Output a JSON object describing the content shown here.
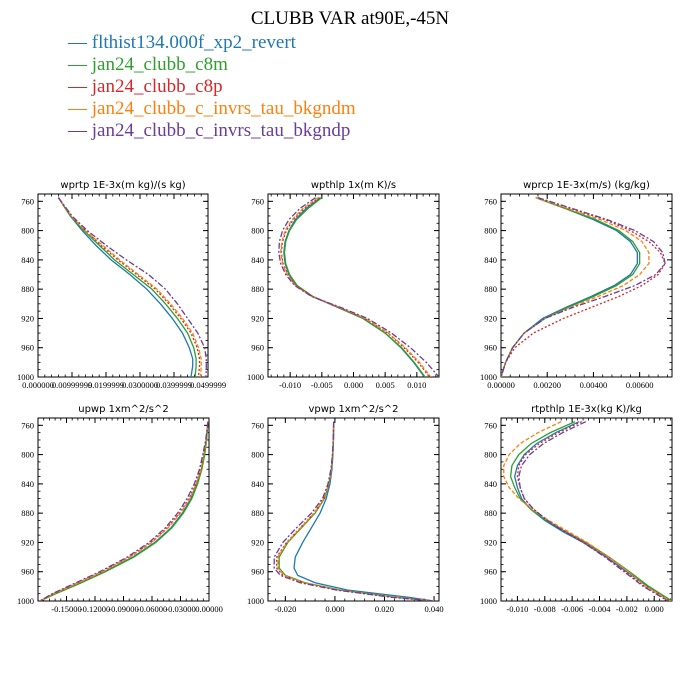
{
  "figure_title": "CLUBB VAR at90E,-45N",
  "legend": [
    {
      "label": "— flthist134.000f_xp2_revert",
      "color": "#1f77b4"
    },
    {
      "label": "— jan24_clubb_c8m",
      "color": "#2ca02c"
    },
    {
      "label": "— jan24_clubb_c8p",
      "color": "#d62728"
    },
    {
      "label": "— jan24_clubb_c_invrs_tau_bkgndm",
      "color": "#ff7f0e"
    },
    {
      "label": "— jan24_clubb_c_invrs_tau_bkgndp",
      "color": "#6a3d9a"
    }
  ],
  "chart_data": [
    {
      "type": "line",
      "title": "wprtp  1E-3x(m kg)/(s kg)",
      "xlim": [
        0.0,
        0.05
      ],
      "ylim": [
        1000,
        750
      ],
      "y_inverted": true,
      "xticks": [
        0.0,
        0.01,
        0.02,
        0.03,
        0.04,
        0.05
      ],
      "xtick_labels": [
        "0.000000",
        "0.00999999",
        "0.0199999",
        "0.0300000",
        "0.0399999",
        "0.0499999"
      ],
      "yticks": [
        760,
        800,
        840,
        880,
        920,
        960,
        1000
      ],
      "ytick_labels": [
        "760",
        "800",
        "840",
        "880",
        "920",
        "960",
        "1000"
      ],
      "y": [
        755,
        780,
        800,
        820,
        840,
        860,
        880,
        900,
        920,
        940,
        960,
        975,
        985,
        1000
      ],
      "series": [
        {
          "values": [
            0.006,
            0.0095,
            0.013,
            0.017,
            0.0215,
            0.027,
            0.032,
            0.036,
            0.0395,
            0.0425,
            0.0445,
            0.0455,
            0.0455,
            0.045
          ]
        },
        {
          "values": [
            0.006,
            0.0095,
            0.0135,
            0.018,
            0.0225,
            0.028,
            0.0335,
            0.0375,
            0.041,
            0.044,
            0.0458,
            0.0465,
            0.0465,
            0.0462
          ]
        },
        {
          "values": [
            0.006,
            0.0098,
            0.014,
            0.0185,
            0.0235,
            0.029,
            0.0345,
            0.0385,
            0.042,
            0.045,
            0.0468,
            0.0475,
            0.0475,
            0.0472
          ]
        },
        {
          "values": [
            0.006,
            0.0098,
            0.0138,
            0.019,
            0.024,
            0.0295,
            0.035,
            0.039,
            0.0425,
            0.0455,
            0.0472,
            0.048,
            0.048,
            0.0478
          ]
        },
        {
          "values": [
            0.006,
            0.01,
            0.0145,
            0.02,
            0.026,
            0.0325,
            0.0375,
            0.041,
            0.044,
            0.047,
            0.049,
            0.0495,
            0.0495,
            0.0494
          ]
        }
      ]
    },
    {
      "type": "line",
      "title": "wpthlp  1x(m K)/s",
      "xlim": [
        -0.0135,
        0.0135
      ],
      "ylim": [
        1000,
        750
      ],
      "y_inverted": true,
      "xticks": [
        -0.01,
        -0.005,
        0.0,
        0.005,
        0.01
      ],
      "xtick_labels": [
        "-0.010",
        "-0.005",
        "0.000",
        "0.005",
        "0.010"
      ],
      "yticks": [
        760,
        800,
        840,
        880,
        920,
        960,
        1000
      ],
      "ytick_labels": [
        "760",
        "800",
        "840",
        "880",
        "920",
        "960",
        "1000"
      ],
      "y": [
        755,
        770,
        785,
        800,
        815,
        830,
        845,
        860,
        875,
        890,
        905,
        920,
        940,
        960,
        980,
        1000
      ],
      "series": [
        {
          "values": [
            -0.0052,
            -0.0075,
            -0.0092,
            -0.0102,
            -0.0108,
            -0.011,
            -0.0108,
            -0.0102,
            -0.009,
            -0.0065,
            -0.0025,
            0.0015,
            0.005,
            0.0075,
            0.0095,
            0.0112
          ]
        },
        {
          "values": [
            -0.005,
            -0.0072,
            -0.009,
            -0.0101,
            -0.0107,
            -0.0109,
            -0.0107,
            -0.0101,
            -0.0089,
            -0.0064,
            -0.0024,
            0.0015,
            0.005,
            0.0076,
            0.0096,
            0.0113
          ]
        },
        {
          "values": [
            -0.0054,
            -0.0078,
            -0.0095,
            -0.0106,
            -0.0112,
            -0.0114,
            -0.0111,
            -0.0104,
            -0.0091,
            -0.0065,
            -0.0023,
            0.0018,
            0.0054,
            0.008,
            0.0102,
            0.012
          ]
        },
        {
          "values": [
            -0.0056,
            -0.008,
            -0.0097,
            -0.0108,
            -0.0113,
            -0.0115,
            -0.0112,
            -0.0105,
            -0.0092,
            -0.0066,
            -0.0022,
            0.0019,
            0.0055,
            0.0082,
            0.0104,
            0.0122
          ]
        },
        {
          "values": [
            -0.006,
            -0.0085,
            -0.0102,
            -0.0112,
            -0.0117,
            -0.0118,
            -0.0115,
            -0.0107,
            -0.0093,
            -0.0066,
            -0.002,
            0.0022,
            0.006,
            0.009,
            0.0115,
            0.0135
          ]
        }
      ]
    },
    {
      "type": "line",
      "title": "wprcp  1E-3x(m/s) (kg/kg)",
      "xlim": [
        0.0,
        0.0074
      ],
      "ylim": [
        1000,
        750
      ],
      "y_inverted": true,
      "xticks": [
        0.0,
        0.002,
        0.004,
        0.006
      ],
      "xtick_labels": [
        "0.00000",
        "0.00200",
        "0.00400",
        "0.00600"
      ],
      "yticks": [
        760,
        800,
        840,
        880,
        920,
        960,
        1000
      ],
      "ytick_labels": [
        "760",
        "800",
        "840",
        "880",
        "920",
        "960",
        "1000"
      ],
      "y": [
        755,
        770,
        785,
        800,
        815,
        830,
        845,
        860,
        875,
        890,
        905,
        920,
        940,
        960,
        980,
        1000
      ],
      "series": [
        {
          "values": [
            0.0015,
            0.0028,
            0.004,
            0.005,
            0.0056,
            0.0059,
            0.0059,
            0.0056,
            0.0049,
            0.0039,
            0.0028,
            0.0018,
            0.001,
            0.0005,
            0.0002,
            0.0
          ]
        },
        {
          "values": [
            0.0015,
            0.0028,
            0.0041,
            0.0051,
            0.0057,
            0.006,
            0.006,
            0.0057,
            0.005,
            0.004,
            0.0029,
            0.0019,
            0.001,
            0.0005,
            0.0002,
            0.0
          ]
        },
        {
          "values": [
            0.0016,
            0.003,
            0.0045,
            0.0056,
            0.0064,
            0.0069,
            0.0071,
            0.0068,
            0.0061,
            0.0051,
            0.0039,
            0.0027,
            0.0014,
            0.0006,
            0.0002,
            0.0
          ]
        },
        {
          "values": [
            0.0015,
            0.0029,
            0.0043,
            0.0054,
            0.0061,
            0.0064,
            0.0064,
            0.006,
            0.0053,
            0.0042,
            0.003,
            0.0019,
            0.001,
            0.0005,
            0.0002,
            0.0
          ]
        },
        {
          "values": [
            0.0016,
            0.0031,
            0.0046,
            0.0058,
            0.0066,
            0.007,
            0.0071,
            0.0067,
            0.0058,
            0.0045,
            0.0031,
            0.0019,
            0.001,
            0.0005,
            0.0002,
            0.0
          ]
        }
      ]
    },
    {
      "type": "line",
      "title": "upwp  1xm^2/s^2",
      "xlim": [
        -0.18,
        0.0
      ],
      "ylim": [
        1000,
        750
      ],
      "y_inverted": true,
      "xticks": [
        -0.15,
        -0.12,
        -0.09,
        -0.06,
        -0.03,
        0.0
      ],
      "xtick_labels": [
        "-0.15000",
        "-0.12000",
        "-0.09000",
        "-0.06000",
        "-0.03000",
        "0.00000"
      ],
      "yticks": [
        760,
        800,
        840,
        880,
        920,
        960,
        1000
      ],
      "ytick_labels": [
        "760",
        "800",
        "840",
        "880",
        "920",
        "960",
        "1000"
      ],
      "y": [
        755,
        780,
        800,
        820,
        840,
        860,
        880,
        900,
        920,
        940,
        960,
        975,
        990,
        1000
      ],
      "series": [
        {
          "values": [
            -0.001,
            -0.003,
            -0.005,
            -0.008,
            -0.013,
            -0.019,
            -0.028,
            -0.04,
            -0.057,
            -0.08,
            -0.11,
            -0.135,
            -0.162,
            -0.178
          ]
        },
        {
          "values": [
            -0.001,
            -0.0025,
            -0.0045,
            -0.0075,
            -0.012,
            -0.018,
            -0.027,
            -0.039,
            -0.056,
            -0.079,
            -0.109,
            -0.134,
            -0.161,
            -0.178
          ]
        },
        {
          "values": [
            -0.001,
            -0.003,
            -0.006,
            -0.009,
            -0.014,
            -0.021,
            -0.031,
            -0.044,
            -0.061,
            -0.084,
            -0.113,
            -0.138,
            -0.164,
            -0.178
          ]
        },
        {
          "values": [
            -0.001,
            -0.003,
            -0.0055,
            -0.0085,
            -0.0135,
            -0.02,
            -0.03,
            -0.043,
            -0.06,
            -0.083,
            -0.112,
            -0.137,
            -0.163,
            -0.178
          ]
        },
        {
          "values": [
            -0.001,
            -0.0035,
            -0.0065,
            -0.01,
            -0.0155,
            -0.023,
            -0.033,
            -0.046,
            -0.063,
            -0.086,
            -0.115,
            -0.14,
            -0.165,
            -0.178
          ]
        }
      ]
    },
    {
      "type": "line",
      "title": "vpwp  1xm^2/s^2",
      "xlim": [
        -0.027,
        0.042
      ],
      "ylim": [
        1000,
        750
      ],
      "y_inverted": true,
      "xticks": [
        -0.02,
        0.0,
        0.02,
        0.04
      ],
      "xtick_labels": [
        "-0.020",
        "0.000",
        "0.020",
        "0.040"
      ],
      "yticks": [
        760,
        800,
        840,
        880,
        920,
        960,
        1000
      ],
      "ytick_labels": [
        "760",
        "800",
        "840",
        "880",
        "920",
        "960",
        "1000"
      ],
      "y": [
        755,
        780,
        800,
        820,
        840,
        860,
        880,
        900,
        920,
        940,
        955,
        965,
        975,
        985,
        995,
        1000
      ],
      "series": [
        {
          "values": [
            -0.0005,
            -0.0006,
            -0.0008,
            -0.0012,
            -0.002,
            -0.0035,
            -0.006,
            -0.0095,
            -0.013,
            -0.016,
            -0.0165,
            -0.015,
            -0.008,
            0.005,
            0.03,
            0.04
          ]
        },
        {
          "values": [
            -0.0005,
            -0.0006,
            -0.0009,
            -0.0014,
            -0.0024,
            -0.0042,
            -0.008,
            -0.0135,
            -0.019,
            -0.0225,
            -0.0225,
            -0.02,
            -0.012,
            0.002,
            0.025,
            0.04
          ]
        },
        {
          "values": [
            -0.0005,
            -0.0006,
            -0.0009,
            -0.0015,
            -0.0026,
            -0.0045,
            -0.0085,
            -0.014,
            -0.0195,
            -0.0235,
            -0.0235,
            -0.021,
            -0.013,
            0.001,
            0.024,
            0.04
          ]
        },
        {
          "values": [
            -0.0005,
            -0.0006,
            -0.0009,
            -0.0014,
            -0.0025,
            -0.0044,
            -0.0083,
            -0.0138,
            -0.0193,
            -0.023,
            -0.023,
            -0.0205,
            -0.0125,
            0.0015,
            0.0245,
            0.04
          ]
        },
        {
          "values": [
            -0.0005,
            -0.0007,
            -0.001,
            -0.0016,
            -0.0028,
            -0.005,
            -0.0095,
            -0.0155,
            -0.021,
            -0.0245,
            -0.0245,
            -0.022,
            -0.014,
            0.0005,
            0.023,
            0.04
          ]
        }
      ]
    },
    {
      "type": "line",
      "title": "rtpthlp  1E-3x(kg K)/kg",
      "xlim": [
        -0.0112,
        0.0013
      ],
      "ylim": [
        1000,
        750
      ],
      "y_inverted": true,
      "xticks": [
        -0.01,
        -0.008,
        -0.006,
        -0.004,
        -0.002,
        0.0
      ],
      "xtick_labels": [
        "-0.010",
        "-0.008",
        "-0.006",
        "-0.004",
        "-0.002",
        "0.000"
      ],
      "yticks": [
        760,
        800,
        840,
        880,
        920,
        960,
        1000
      ],
      "ytick_labels": [
        "760",
        "800",
        "840",
        "880",
        "920",
        "960",
        "1000"
      ],
      "y": [
        755,
        770,
        785,
        800,
        815,
        830,
        845,
        860,
        875,
        890,
        905,
        920,
        940,
        960,
        980,
        1000
      ],
      "series": [
        {
          "values": [
            -0.0055,
            -0.0072,
            -0.0086,
            -0.0095,
            -0.01,
            -0.0102,
            -0.01,
            -0.0097,
            -0.009,
            -0.008,
            -0.0067,
            -0.0052,
            -0.0035,
            -0.002,
            -0.0005,
            0.0012
          ]
        },
        {
          "values": [
            -0.0058,
            -0.0076,
            -0.009,
            -0.0099,
            -0.0104,
            -0.0105,
            -0.0102,
            -0.0098,
            -0.009,
            -0.0079,
            -0.0065,
            -0.005,
            -0.0033,
            -0.0018,
            -0.0004,
            0.0013
          ]
        },
        {
          "values": [
            -0.0053,
            -0.007,
            -0.0084,
            -0.0094,
            -0.0099,
            -0.01,
            -0.0098,
            -0.0095,
            -0.0088,
            -0.0078,
            -0.0065,
            -0.0051,
            -0.0035,
            -0.0021,
            -0.0007,
            0.0011
          ]
        },
        {
          "values": [
            -0.0068,
            -0.0085,
            -0.0098,
            -0.0106,
            -0.011,
            -0.011,
            -0.0106,
            -0.0099,
            -0.0089,
            -0.0077,
            -0.0063,
            -0.0049,
            -0.0033,
            -0.0019,
            -0.0006,
            0.0012
          ]
        },
        {
          "values": [
            -0.005,
            -0.0067,
            -0.0081,
            -0.0091,
            -0.0097,
            -0.0099,
            -0.0098,
            -0.0095,
            -0.0088,
            -0.0078,
            -0.0066,
            -0.0052,
            -0.0036,
            -0.0022,
            -0.0008,
            0.001
          ]
        }
      ]
    }
  ]
}
